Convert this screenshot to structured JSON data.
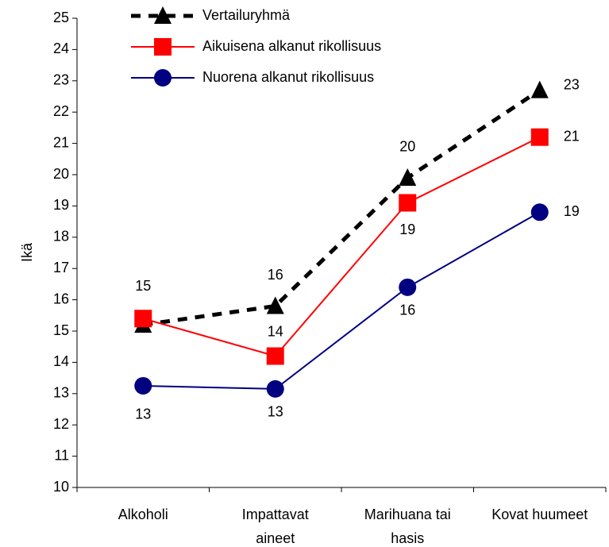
{
  "chart_data": {
    "type": "line",
    "y_label": "Ikä",
    "categories": [
      "Alkoholi",
      "Impattavat aineet",
      "Marihuana tai hasis",
      "Kovat huumeet"
    ],
    "series": [
      {
        "name": "Vertailuryhmä",
        "color": "#000000",
        "marker": "triangle",
        "dash": true,
        "values": [
          15.2,
          15.8,
          19.9,
          22.7
        ],
        "value_labels": [
          null,
          "16",
          "20",
          "23"
        ]
      },
      {
        "name": "Aikuisena alkanut rikollisuus",
        "color": "#ff0000",
        "marker": "square",
        "dash": false,
        "values": [
          15.4,
          14.2,
          19.1,
          21.2
        ],
        "value_labels": [
          "15",
          "14",
          "19",
          "21"
        ]
      },
      {
        "name": "Nuorena alkanut rikollisuus",
        "color": "#000080",
        "marker": "circle",
        "dash": false,
        "values": [
          13.25,
          13.15,
          16.4,
          18.8
        ],
        "value_labels": [
          "13",
          "13",
          "16",
          "19"
        ]
      }
    ],
    "ylim": [
      10,
      25
    ],
    "yticks": [
      10,
      11,
      12,
      13,
      14,
      15,
      16,
      17,
      18,
      19,
      20,
      21,
      22,
      23,
      24,
      25
    ],
    "grid": false,
    "legend": "top-left"
  }
}
